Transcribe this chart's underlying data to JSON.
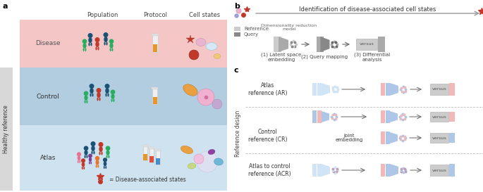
{
  "panel_a_label": "a",
  "panel_b_label": "b",
  "panel_c_label": "c",
  "disease_bg": "#f5c6c6",
  "control_bg": "#b3cde0",
  "atlas_bg": "#cfe2f0",
  "healthy_ref_bg": "#d8d8d8",
  "healthy_ref_label": "Healthy reference",
  "disease_label": "Disease",
  "control_label": "Control",
  "atlas_label": "Atlas",
  "col_labels": [
    "Population",
    "Protocol",
    "Cell states"
  ],
  "b_title": "Identification of disease-associated cell states",
  "b_steps": [
    "(1) Latent space\nembedding",
    "(2) Query mapping",
    "(3) Differential\nanalysis"
  ],
  "b_dim_red": "Dimensionality reduction\nmodel",
  "b_ref_label": "Reference",
  "b_query_label": "Query",
  "c_rows": [
    "Atlas\nreference (AR)",
    "Control\nreference (CR)",
    "Atlas to control\nreference (ACR)"
  ],
  "c_joint": "Joint\nembedding",
  "ref_design_label": "Reference design",
  "versus_text": "versus",
  "blue_light": "#aec6e8",
  "blue_very_light": "#d0e4f5",
  "pink_light": "#f2b8b8",
  "gray_mid": "#999999",
  "gray_light": "#cccccc",
  "gray_dark": "#888888",
  "arrow_color": "#666666",
  "dashed_color": "#bbbbbb",
  "legend_text": "= Disease-associated states"
}
